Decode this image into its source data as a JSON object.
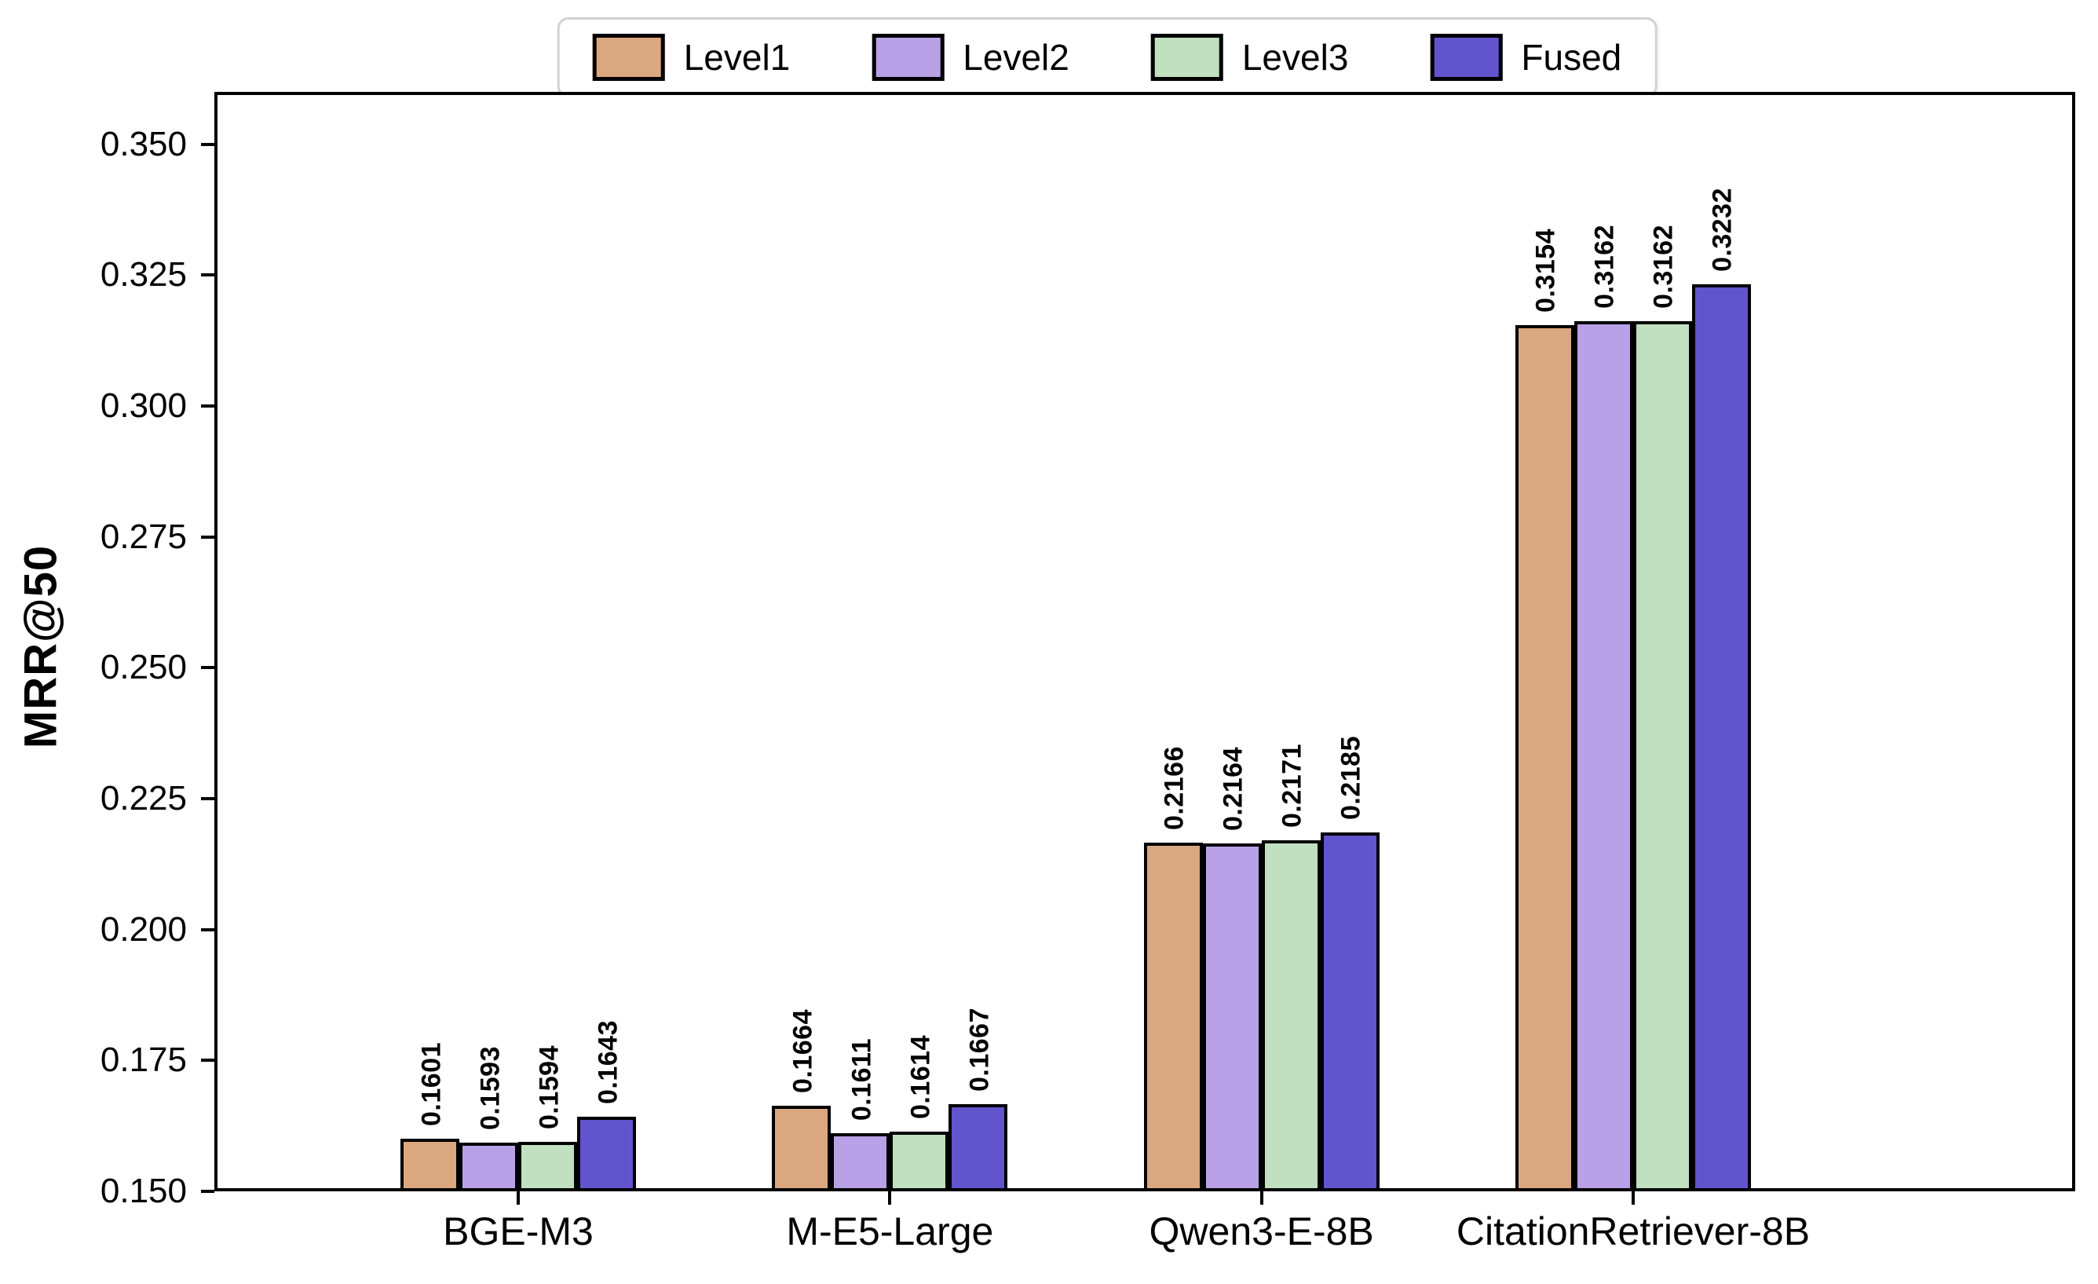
{
  "chart_data": {
    "type": "bar",
    "title": "",
    "xlabel": "",
    "ylabel": "MRR@50",
    "categories": [
      "BGE-M3",
      "M-E5-Large",
      "Qwen3-E-8B",
      "CitationRetriever-8B"
    ],
    "series": [
      {
        "name": "Level1",
        "color": "#DBA77F",
        "values": [
          0.1601,
          0.1664,
          0.2166,
          0.3154
        ]
      },
      {
        "name": "Level2",
        "color": "#B8A1E6",
        "values": [
          0.1593,
          0.1611,
          0.2164,
          0.3162
        ]
      },
      {
        "name": "Level3",
        "color": "#C0E0C0",
        "values": [
          0.1594,
          0.1614,
          0.2171,
          0.3162
        ]
      },
      {
        "name": "Fused",
        "color": "#6254CC",
        "values": [
          0.1643,
          0.1667,
          0.2185,
          0.3232
        ]
      }
    ],
    "value_label_decimals": 4,
    "ylim": [
      0.15,
      0.36
    ],
    "yticks": [
      "0.150",
      "0.175",
      "0.200",
      "0.225",
      "0.250",
      "0.275",
      "0.300",
      "0.325",
      "0.350"
    ],
    "grid": "horizontal dashed",
    "legend_position": "top center",
    "bar_edge_color": "#000000",
    "grid_color": "#e3e3e3"
  }
}
